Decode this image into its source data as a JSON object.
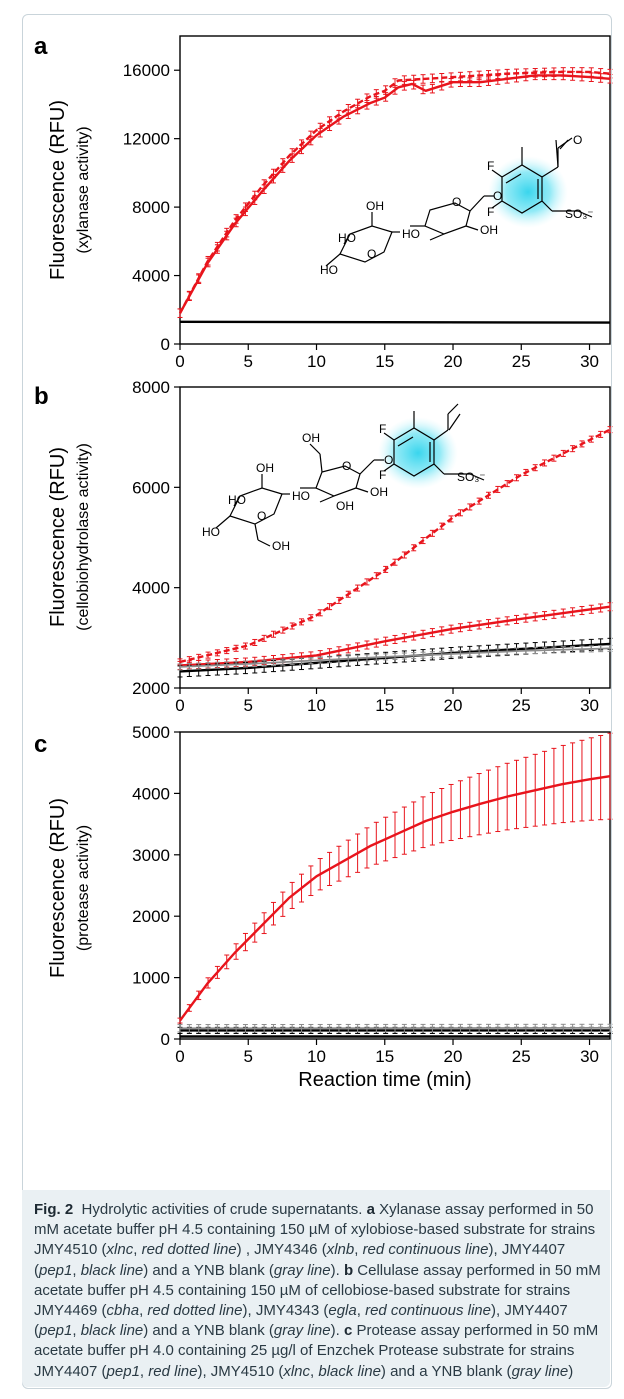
{
  "chart_data": [
    {
      "panel": "a",
      "type": "line",
      "ylabel": "Fluorescence (RFU)",
      "ysublabel": "(xylanase activity)",
      "xlim": [
        0,
        31.5
      ],
      "ylim": [
        0,
        18000
      ],
      "yticks": [
        0,
        4000,
        8000,
        12000,
        16000
      ],
      "xticks": [
        0,
        5,
        10,
        15,
        20,
        25,
        30
      ],
      "grid": false,
      "series": [
        {
          "style": "red-dotted",
          "color": "#e8141c",
          "x": [
            0,
            2,
            4,
            6,
            8,
            10,
            12,
            14,
            15,
            16,
            18,
            20,
            22,
            24,
            26,
            28,
            30,
            31.5
          ],
          "y": [
            1800,
            4800,
            7200,
            9200,
            11000,
            12500,
            13600,
            14500,
            14800,
            15400,
            15500,
            15600,
            15700,
            15800,
            15850,
            15900,
            15900,
            15800
          ],
          "err": 250
        },
        {
          "style": "red-continuous",
          "color": "#e8141c",
          "x": [
            0,
            2,
            4,
            6,
            8,
            10,
            12,
            14,
            15,
            16,
            17,
            18,
            20,
            22,
            24,
            26,
            28,
            30,
            31.5
          ],
          "y": [
            1800,
            4700,
            7000,
            8900,
            10700,
            12200,
            13300,
            14100,
            14400,
            15000,
            15200,
            14800,
            15300,
            15300,
            15500,
            15700,
            15700,
            15600,
            15500
          ],
          "err": 250
        },
        {
          "style": "black",
          "color": "#000000",
          "x": [
            0,
            31.5
          ],
          "y": [
            1300,
            1250
          ],
          "err": 0
        }
      ]
    },
    {
      "panel": "b",
      "type": "line",
      "ylabel": "Fluorescence (RFU)",
      "ysublabel": "(cellobiohydrolase activity)",
      "xlim": [
        0,
        31.5
      ],
      "ylim": [
        2000,
        8000
      ],
      "yticks": [
        2000,
        4000,
        6000,
        8000
      ],
      "xticks": [
        0,
        5,
        10,
        15,
        20,
        25,
        30
      ],
      "grid": false,
      "series": [
        {
          "style": "red-dotted",
          "color": "#e8141c",
          "x": [
            0,
            5,
            10,
            15,
            20,
            25,
            31.5
          ],
          "y": [
            2520,
            2850,
            3450,
            4350,
            5400,
            6250,
            7150
          ],
          "err": 60
        },
        {
          "style": "red-continuous",
          "color": "#e8141c",
          "x": [
            0,
            5,
            10,
            15,
            20,
            25,
            31.5
          ],
          "y": [
            2450,
            2520,
            2650,
            2930,
            3180,
            3380,
            3620
          ],
          "err": 80
        },
        {
          "style": "black",
          "color": "#000000",
          "x": [
            0,
            5,
            10,
            15,
            20,
            25,
            31.5
          ],
          "y": [
            2330,
            2400,
            2500,
            2600,
            2700,
            2780,
            2880
          ],
          "err": 110
        },
        {
          "style": "gray",
          "color": "#8c8c8c",
          "x": [
            0,
            5,
            10,
            15,
            20,
            25,
            31.5
          ],
          "y": [
            2420,
            2480,
            2550,
            2620,
            2680,
            2740,
            2790
          ],
          "err": 60
        }
      ]
    },
    {
      "panel": "c",
      "type": "line",
      "ylabel": "Fluorescence (RFU)",
      "ysublabel": "(protease activity)",
      "xlabel": "Reaction time (min)",
      "xlim": [
        0,
        31.5
      ],
      "ylim": [
        0,
        5000
      ],
      "yticks": [
        0,
        1000,
        2000,
        3000,
        4000,
        5000
      ],
      "xticks": [
        0,
        5,
        10,
        15,
        20,
        25,
        30
      ],
      "grid": false,
      "series": [
        {
          "style": "red",
          "color": "#e8141c",
          "x": [
            0,
            2,
            4,
            6,
            8,
            10,
            12,
            14,
            16,
            18,
            20,
            22,
            24,
            26,
            28,
            30,
            31.5
          ],
          "y": [
            300,
            900,
            1400,
            1850,
            2300,
            2650,
            2900,
            3150,
            3350,
            3550,
            3700,
            3830,
            3950,
            4050,
            4150,
            4230,
            4280
          ],
          "err_start": 40,
          "err_end": 700
        },
        {
          "style": "black",
          "color": "#000000",
          "x": [
            0,
            31.5
          ],
          "y": [
            140,
            140
          ],
          "err": 50
        },
        {
          "style": "gray",
          "color": "#8c8c8c",
          "x": [
            0,
            31.5
          ],
          "y": [
            175,
            180
          ],
          "err": 60
        },
        {
          "style": "black-base",
          "color": "#000000",
          "x": [
            0,
            31.5
          ],
          "y": [
            40,
            40
          ],
          "err": 0
        }
      ]
    }
  ],
  "molecules": {
    "a": {
      "groups": [
        "SO₃⁻",
        "HO",
        "OH",
        "HO",
        "OH",
        "HO",
        "F",
        "F",
        "O",
        "O",
        "O",
        "O"
      ]
    },
    "b": {
      "groups": [
        "SO₃⁻",
        "OH",
        "OH",
        "HO",
        "OH",
        "HO",
        "HO",
        "OH",
        "F",
        "F",
        "O",
        "O",
        "O",
        "OH"
      ]
    }
  },
  "caption": {
    "fig_label": "Fig. 2",
    "title": "Hydrolytic activities of crude supernatants.",
    "a_label": "a",
    "a_text_1": "Xylanase assay performed in 50 mM acetate buffer pH 4.5 containing 150 µM of xylobiose-based substrate for strains JMY4510 (",
    "a_s1": "xlnc",
    "a_l1": "red dotted line",
    "a_text_2": ") , JMY4346 (",
    "a_s2": "xlnb",
    "a_l2": "red continuous line",
    "a_text_3": "), JMY4407 (",
    "a_s3": "pep1",
    "a_l3": "black line",
    "a_text_4": ") and a YNB blank (",
    "a_l4": "gray line",
    "a_text_5": ").",
    "b_label": "b",
    "b_text_1": "Cellulase assay performed in 50 mM acetate buffer pH 4.5 containing 150 µM of cellobiose-based substrate for strains JMY4469 (",
    "b_s1": "cbha",
    "b_l1": "red dotted line",
    "b_text_2": "), JMY4343 (",
    "b_s2": "egla",
    "b_l2": "red continuous line",
    "b_text_3": "), JMY4407 (",
    "b_s3": "pep1",
    "b_l3": "black line",
    "b_text_4": ") and a YNB blank (",
    "b_l4": "gray line",
    "b_text_5": ").",
    "c_label": "c",
    "c_text_1": "Protease assay performed in 50 mM acetate buffer pH 4.0 containing 25 µg/l of Enzchek Protease substrate for strains JMY4407 (",
    "c_s1": "pep1",
    "c_l1": "red line",
    "c_text_2": "), JMY4510 (",
    "c_s2": "xlnc",
    "c_l2": "black line",
    "c_text_3": ") and a YNB blank (",
    "c_l3": "gray line",
    "c_text_4": ")"
  },
  "colors": {
    "red": "#e8141c",
    "black": "#000000",
    "gray": "#8c8c8c",
    "glow": "#2fd3ec",
    "caption_bg": "#eaf0f3"
  }
}
